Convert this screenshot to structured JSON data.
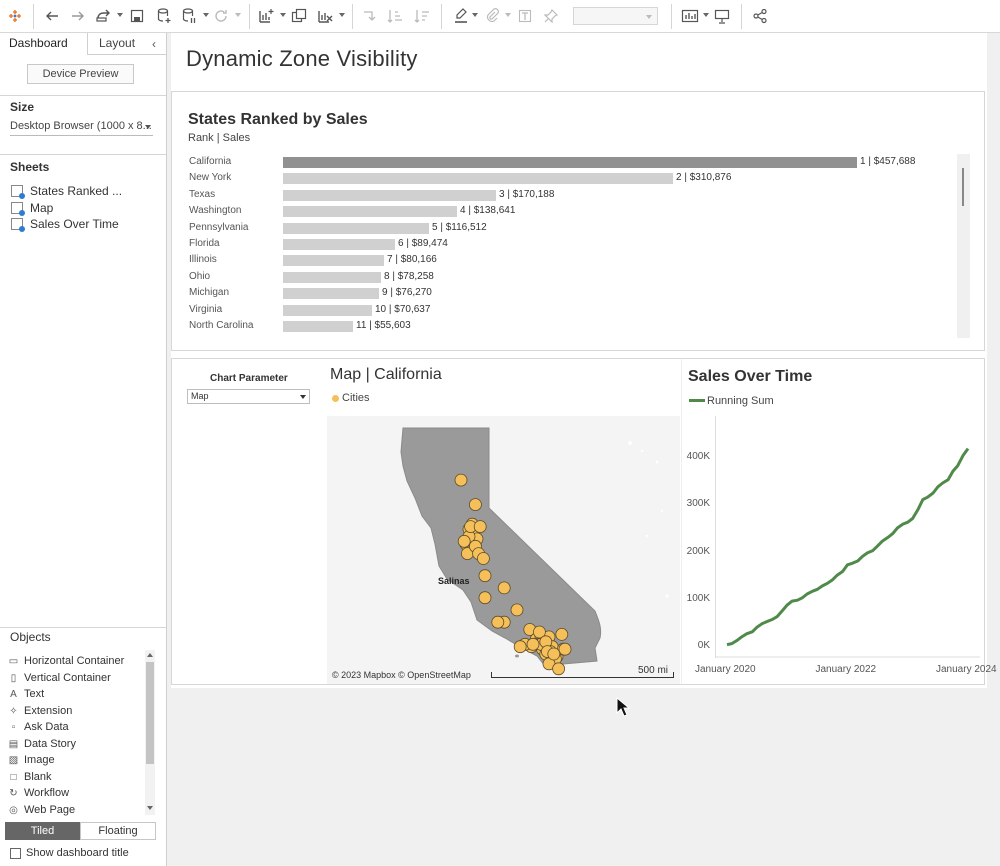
{
  "toolbar": {
    "icons": [
      "tableau-logo-icon",
      "undo-icon",
      "redo-icon",
      "replay-icon",
      "save-icon",
      "new-datasource-icon",
      "pause-updates-icon",
      "refresh-icon",
      "new-worksheet-icon",
      "duplicate-icon",
      "clear-icon",
      "swap-icon",
      "sort-ascending-icon",
      "sort-descending-icon",
      "highlight-icon",
      "attach-icon",
      "text-icon",
      "pin-icon",
      "fit-select",
      "show-me-icon",
      "presentation-icon",
      "share-icon"
    ]
  },
  "left_panel": {
    "tabs": {
      "dashboard": "Dashboard",
      "layout": "Layout"
    },
    "device_preview": "Device Preview",
    "size": {
      "title": "Size",
      "value": "Desktop Browser (1000 x 8..."
    },
    "sheets": {
      "title": "Sheets",
      "items": [
        "States Ranked ...",
        "Map",
        "Sales Over Time"
      ]
    },
    "objects": {
      "title": "Objects",
      "items": [
        "Horizontal Container",
        "Vertical Container",
        "Text",
        "Extension",
        "Ask Data",
        "Data Story",
        "Image",
        "Blank",
        "Workflow",
        "Web Page"
      ]
    },
    "tiled": "Tiled",
    "floating": "Floating",
    "show_title": "Show dashboard title"
  },
  "dashboard": {
    "title": "Dynamic Zone Visibility",
    "parameter": {
      "label": "Chart Parameter",
      "value": "Map"
    },
    "map": {
      "title": "Map | California",
      "legend": "Cities",
      "attribution": "© 2023 Mapbox © OpenStreetMap",
      "scale": "500 mi",
      "city_label": "Salinas"
    }
  },
  "chart_data": [
    {
      "type": "bar",
      "title": "States Ranked by Sales",
      "subtitle": "Rank | Sales",
      "categories": [
        "California",
        "New York",
        "Texas",
        "Washington",
        "Pennsylvania",
        "Florida",
        "Illinois",
        "Ohio",
        "Michigan",
        "Virginia",
        "North Carolina"
      ],
      "values": [
        457688,
        310876,
        170188,
        138641,
        116512,
        89474,
        80166,
        78258,
        76270,
        70637,
        55603
      ],
      "labels": [
        "1 | $457,688",
        "2 | $310,876",
        "3 | $170,188",
        "4 | $138,641",
        "5 | $116,512",
        "6 | $89,474",
        "7 | $80,166",
        "8 | $78,258",
        "9 | $76,270",
        "10 | $70,637",
        "11 | $55,603"
      ],
      "highlight": "California",
      "colors": {
        "highlight": "#919191",
        "default": "#d0d0d0"
      }
    },
    {
      "type": "line",
      "title": "Sales Over Time",
      "legend": "Running Sum",
      "x_ticks": [
        "January 2020",
        "January 2022",
        "January 2024"
      ],
      "y_ticks": [
        "0K",
        "100K",
        "200K",
        "300K",
        "400K"
      ],
      "ylim": [
        0,
        470000
      ],
      "xlim": [
        2020.0,
        2024.0
      ],
      "series": [
        {
          "name": "Running Sum",
          "color": "#4f8a4a",
          "x": [
            2020.0,
            2020.08,
            2020.17,
            2020.25,
            2020.33,
            2020.42,
            2020.5,
            2020.58,
            2020.67,
            2020.75,
            2020.83,
            2020.92,
            2021.0,
            2021.08,
            2021.17,
            2021.25,
            2021.33,
            2021.42,
            2021.5,
            2021.58,
            2021.67,
            2021.75,
            2021.83,
            2021.92,
            2022.0,
            2022.08,
            2022.17,
            2022.25,
            2022.33,
            2022.42,
            2022.5,
            2022.58,
            2022.67,
            2022.75,
            2022.83,
            2022.92,
            2023.0,
            2023.08,
            2023.17,
            2023.25,
            2023.33,
            2023.42,
            2023.5,
            2023.58,
            2023.67,
            2023.75,
            2023.83,
            2023.92,
            2024.0
          ],
          "y": [
            3000,
            5000,
            12000,
            20000,
            26000,
            30000,
            40000,
            47000,
            52000,
            56000,
            62000,
            75000,
            87000,
            95000,
            97000,
            102000,
            110000,
            116000,
            120000,
            127000,
            133000,
            140000,
            150000,
            158000,
            172000,
            175000,
            180000,
            190000,
            197000,
            202000,
            212000,
            222000,
            230000,
            238000,
            250000,
            258000,
            262000,
            270000,
            289000,
            310000,
            315000,
            324000,
            337000,
            345000,
            352000,
            370000,
            382000,
            404000,
            418000
          ]
        }
      ]
    },
    {
      "type": "scatter",
      "title": "Map | California",
      "legend": "Cities",
      "color": "#f5c05a",
      "note": "city points plotted in map-relative coordinates",
      "x": [
        0.35,
        0.44,
        0.4,
        0.42,
        0.43,
        0.45,
        0.38,
        0.4,
        0.41,
        0.47,
        0.43,
        0.39,
        0.37,
        0.44,
        0.46,
        0.49,
        0.5,
        0.62,
        0.7,
        0.62,
        0.78,
        0.82,
        0.85,
        0.88,
        0.9,
        0.83,
        0.92,
        0.86,
        0.88,
        0.95,
        0.93,
        0.91,
        0.85,
        0.84,
        0.88,
        0.89,
        0.94,
        0.99,
        1.0,
        0.98,
        0.79,
        0.75,
        0.72,
        0.8,
        0.9,
        0.58,
        0.5,
        0.93,
        0.96
      ],
      "y": [
        0.18,
        0.28,
        0.38,
        0.36,
        0.4,
        0.42,
        0.44,
        0.41,
        0.37,
        0.37,
        0.46,
        0.48,
        0.43,
        0.45,
        0.48,
        0.5,
        0.57,
        0.62,
        0.71,
        0.76,
        0.79,
        0.83,
        0.82,
        0.84,
        0.82,
        0.85,
        0.86,
        0.87,
        0.89,
        0.9,
        0.92,
        0.88,
        0.85,
        0.8,
        0.84,
        0.88,
        0.91,
        0.87,
        0.87,
        0.81,
        0.86,
        0.85,
        0.86,
        0.85,
        0.93,
        0.76,
        0.66,
        0.89,
        0.95
      ]
    }
  ]
}
